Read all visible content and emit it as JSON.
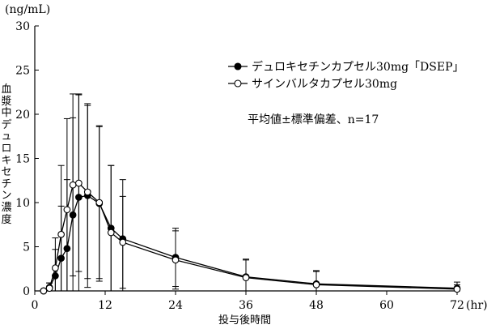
{
  "chart_data": {
    "type": "line",
    "ylabel": "血漿中デュロキセチン濃度",
    "yunit": "(ng/mL)",
    "xlabel": "投与後時間",
    "xunit": "(hr)",
    "xlim": [
      0,
      72
    ],
    "ylim": [
      0,
      30
    ],
    "xticks": [
      0,
      12,
      24,
      36,
      48,
      60,
      72
    ],
    "yticks": [
      5,
      10,
      15,
      20,
      25,
      30
    ],
    "annotation": "平均値±標準偏差、n=17",
    "legend_position": "top-right",
    "grid": false,
    "series": [
      {
        "name": "デュロキセチンカプセル30mg「DSEP」",
        "marker": "filled-circle",
        "color": "#000000",
        "x": [
          1.5,
          2.5,
          3.5,
          4.5,
          5.5,
          6.5,
          7.5,
          9,
          11,
          13,
          15,
          24,
          36,
          48,
          72
        ],
        "y": [
          0.0,
          0.4,
          1.7,
          3.7,
          4.8,
          8.6,
          10.6,
          10.8,
          9.9,
          7.1,
          5.9,
          3.8,
          1.6,
          0.8,
          0.3
        ],
        "sd": [
          0.0,
          0.5,
          3.0,
          5.9,
          7.8,
          11.0,
          11.7,
          10.4,
          8.8,
          7.1,
          6.7,
          3.3,
          1.9,
          1.4,
          0.7
        ]
      },
      {
        "name": "サインバルタカプセル30mg",
        "marker": "open-circle",
        "color": "#000000",
        "x": [
          1.5,
          2.5,
          3.5,
          4.5,
          5.5,
          6.5,
          7.5,
          9,
          11,
          13,
          15,
          24,
          36,
          48,
          72
        ],
        "y": [
          0.0,
          0.3,
          2.6,
          6.4,
          9.2,
          12.0,
          12.2,
          11.2,
          10.0,
          6.6,
          5.5,
          3.5,
          1.5,
          0.7,
          0.2
        ],
        "sd": [
          0.0,
          0.6,
          3.4,
          7.8,
          10.3,
          10.3,
          10.0,
          9.8,
          8.6,
          7.6,
          5.2,
          3.3,
          2.1,
          1.6,
          0.5
        ]
      }
    ]
  }
}
